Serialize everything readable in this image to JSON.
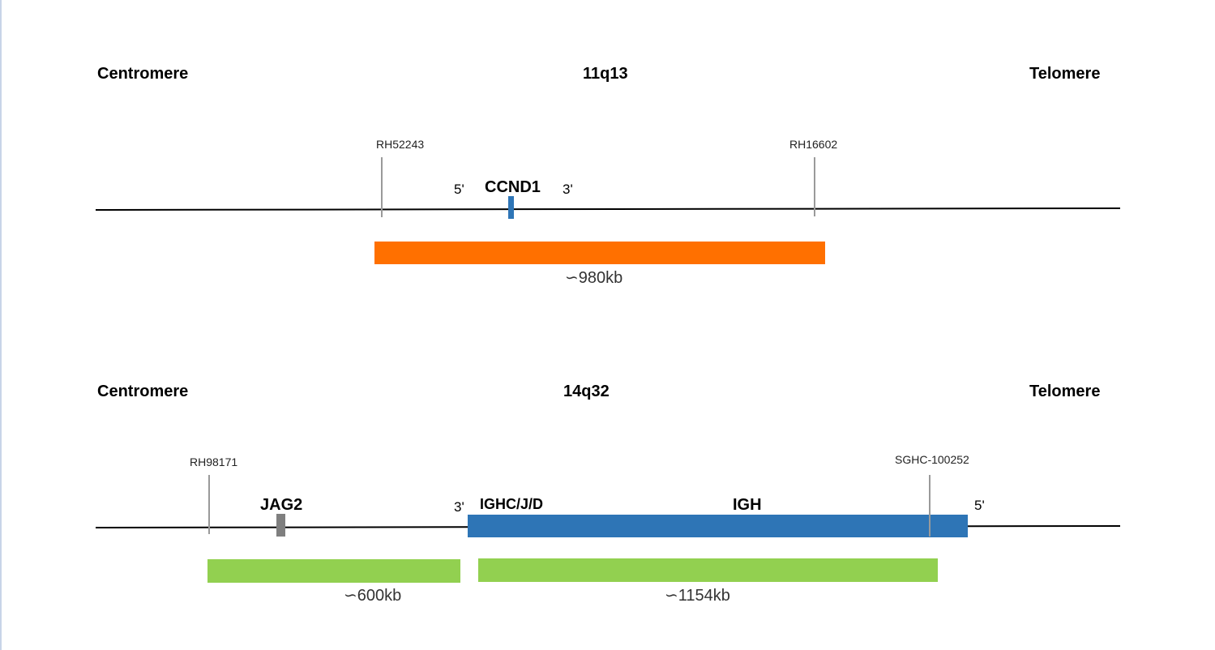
{
  "panel_11q13": {
    "title": "11q13",
    "left_label": "Centromere",
    "right_label": "Telomere",
    "marker_left": "RH52243",
    "marker_right": "RH16602",
    "gene": "CCND1",
    "prime5": "5'",
    "prime3": "3'",
    "probe_size": "∽980kb",
    "colors": {
      "gene": "#2e75b6",
      "probe": "#ff7000",
      "line": "#000000",
      "marker": "#9a9a9a"
    }
  },
  "panel_14q32": {
    "title": "14q32",
    "left_label": "Centromere",
    "right_label": "Telomere",
    "marker_left": "RH98171",
    "marker_right": "SGHC-100252",
    "gene_left": "JAG2",
    "gene_region": "IGHC/J/D",
    "gene_main": "IGH",
    "prime3": "3'",
    "prime5": "5'",
    "probe_left_size": "∽600kb",
    "probe_right_size": "∽1154kb",
    "colors": {
      "gene_left": "#7f7f7f",
      "gene_main": "#2e75b6",
      "probe": "#92d050",
      "line": "#000000",
      "marker": "#9a9a9a"
    }
  }
}
